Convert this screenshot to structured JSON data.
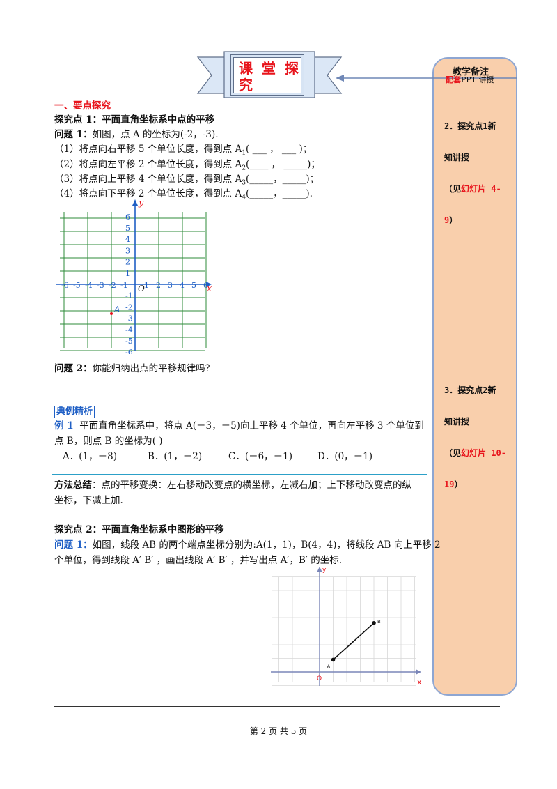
{
  "banner": {
    "title": "课 堂 探 究"
  },
  "section1": {
    "heading": "一、要点探究"
  },
  "point1": {
    "heading": "探究点 1：平面直角坐标系中点的平移",
    "q1_label": "问题 1：",
    "q1_text": "如图，点 A 的坐标为(-2，-3).",
    "items": [
      {
        "text": "（1）将点向右平移 5 个单位长度，得到点 A",
        "sub": "1",
        "blank": "(  ___  ，  ___  )；"
      },
      {
        "text": "（2）将点向左平移 2 个单位长度，得到点 A",
        "sub": "2",
        "blank": "(____  ，  _____)；"
      },
      {
        "text": "（3）将点向上平移 4 个单位长度，得到点 A",
        "sub": "3",
        "blank": "(_____，_____)；"
      },
      {
        "text": "（4）将点向下平移 2 个单位长度，得到点 A",
        "sub": "4",
        "blank": "(_____，_____)."
      }
    ],
    "q2_label": "问题 2：",
    "q2_text": "你能归纳出点的平移规律吗？"
  },
  "grid1": {
    "x_axis_label": "x",
    "y_axis_label": "y",
    "origin_label": "O",
    "point_label": "A",
    "x_ticks": [
      "-6",
      "-5",
      "-4",
      "-3",
      "-2",
      "-1",
      "1",
      "2",
      "3",
      "4",
      "5",
      "6"
    ],
    "y_ticks": [
      "6",
      "5",
      "4",
      "3",
      "2",
      "1",
      "-1",
      "-2",
      "-3",
      "-4",
      "-5",
      "-6"
    ]
  },
  "example": {
    "label": "典例精析",
    "tag": "例 1",
    "line1": "平面直角坐标系中，将点 A(－3，－5)向上平移 4 个单位，再向左平移 3 个单位到",
    "line2": "点 B，则点 B 的坐标为(      )",
    "options": [
      "A．(1，－8)",
      "B．(1，－2)",
      "C．(－6，－1)",
      "D．(0，－1)"
    ]
  },
  "method": {
    "label": "方法总结",
    "line1": "：点的平移变换：左右移动改变点的横坐标，左减右加；上下移动改变点的纵",
    "line2": "坐标，下减上加."
  },
  "point2": {
    "heading": "探究点 2：平面直角坐标系中图形的平移",
    "q1_label": "问题 1：",
    "line1": "如图，线段 AB 的两个端点坐标分别为:A(1，1)，B(4，4)，将线段 AB 向上平移 2",
    "line2": "个单位，得到线段 A′ B′ ，画出线段 A′ B′ ，并写出点 A′，B′ 的坐标."
  },
  "grid2": {
    "x_axis_label": "x",
    "y_axis_label": "y",
    "origin_label": "O",
    "point_a_label": "A",
    "point_b_label": "B",
    "segment": {
      "A": [
        1,
        1
      ],
      "B": [
        4,
        4
      ]
    }
  },
  "sidebar": {
    "title": "教学备注",
    "subtitle_red": "配套",
    "subtitle_rest": "PPT 讲授",
    "note1_black1": "2．探究点1新",
    "note1_black2": "知讲授",
    "note1_black3": "（见",
    "note1_red1": "幻灯片 4-",
    "note1_red2": "9",
    "note1_close": "）",
    "note2_black1": "3．探究点2新",
    "note2_black2": "知讲授",
    "note2_black3": "（见",
    "note2_red1": "幻灯片 10-",
    "note2_red2": "19",
    "note2_close": "）"
  },
  "footer": {
    "text": "第 2 页 共 5 页"
  },
  "colors": {
    "red": "#e8141c",
    "blue": "#1f5fc5",
    "sidebar_fill": "#f9cfac",
    "sidebar_border": "#8ea6d2",
    "grid_line": "#2e8b3a"
  }
}
